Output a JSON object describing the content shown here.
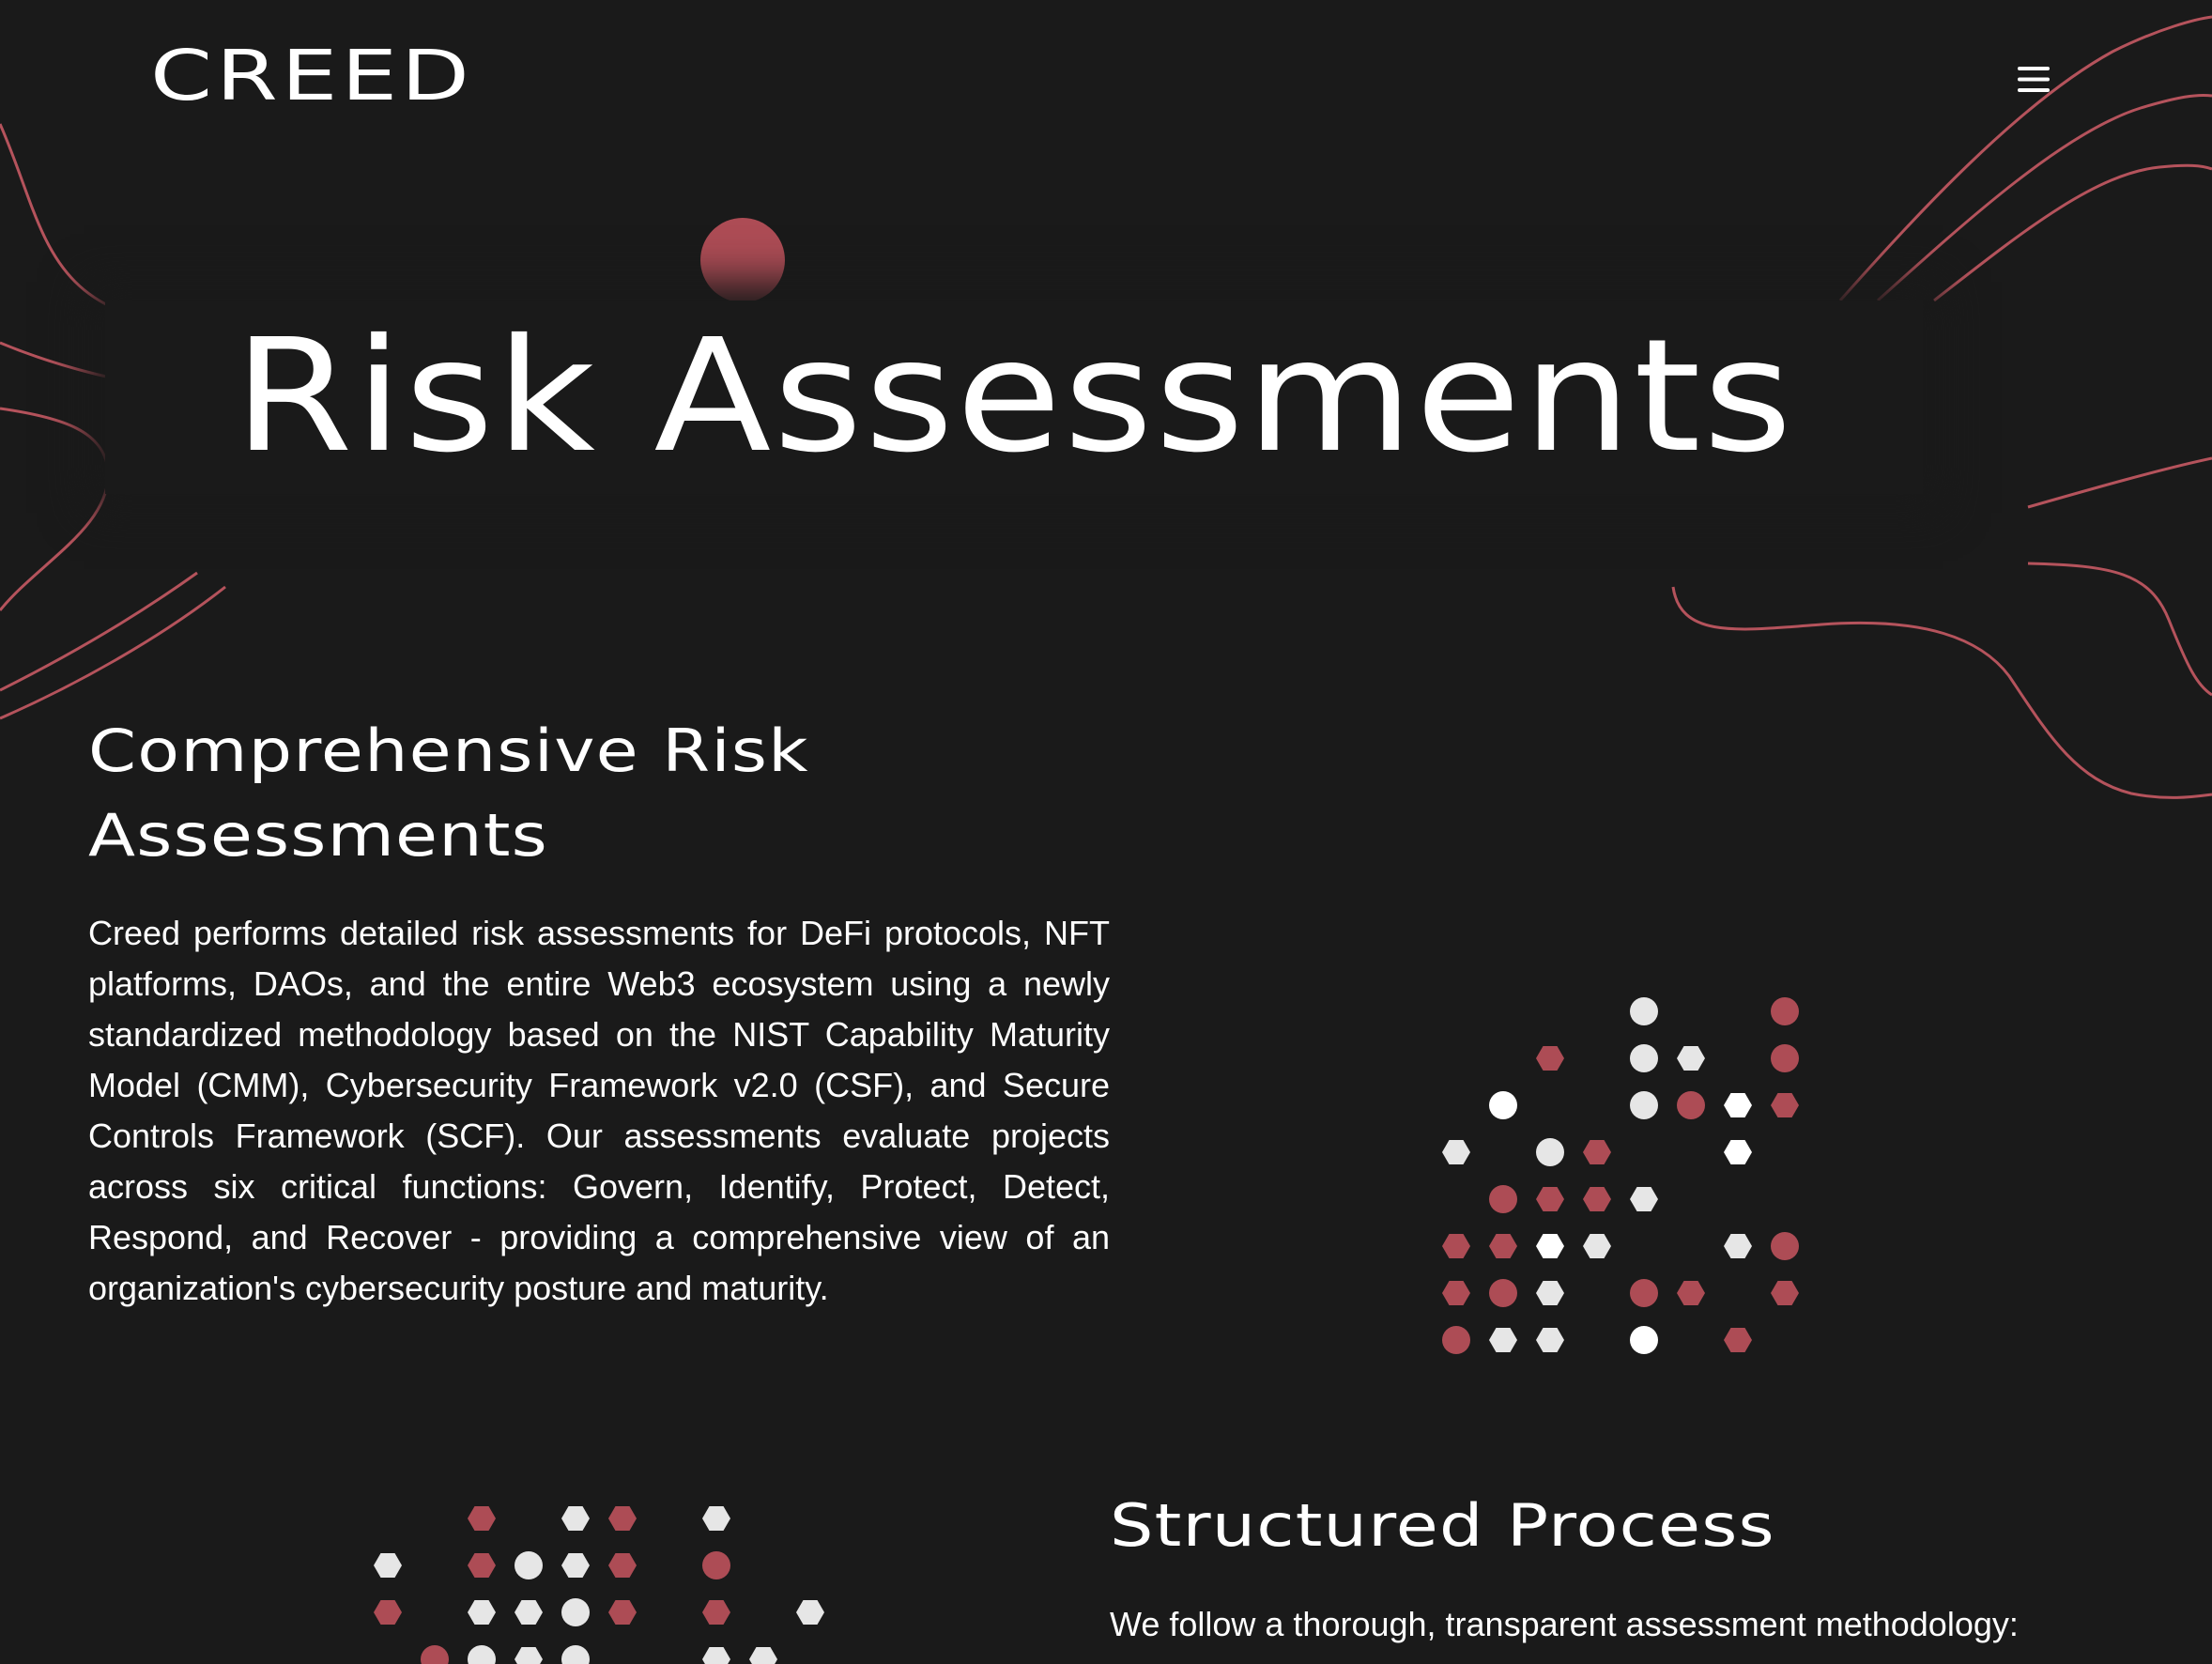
{
  "header": {
    "logo": "CREED",
    "menu_icon": "hamburger-menu-icon"
  },
  "hero": {
    "title": "Risk Assessments"
  },
  "risk_section": {
    "heading": "Comprehensive Risk Assessments",
    "body": "Creed performs detailed risk assessments for DeFi protocols, NFT platforms, DAOs, and the entire Web3 ecosystem using a newly standardized methodology based on the NIST Capability Maturity Model (CMM), Cybersecurity Framework v2.0 (CSF), and Secure Controls Framework (SCF). Our assessments evaluate projects across six critical functions: Govern, Identify, Protect, Detect, Respond, and Recover - providing a comprehensive view of an organization's cybersecurity posture and maturity."
  },
  "process_section": {
    "heading": "Structured Process",
    "intro": "We follow a thorough, transparent assessment methodology:"
  },
  "colors": {
    "background": "#1a1a1a",
    "accent": "#ad4c55",
    "text": "#ffffff",
    "light_dot": "#e6e6e6"
  }
}
